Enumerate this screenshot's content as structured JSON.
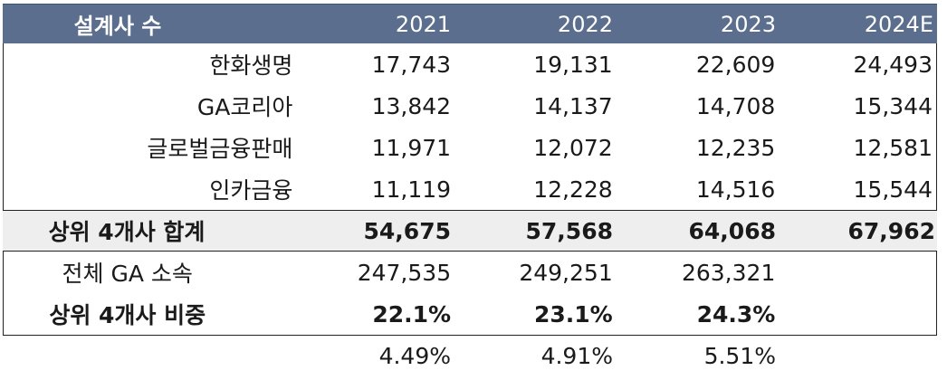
{
  "table": {
    "header": [
      "설계사 수",
      "2021",
      "2022",
      "2023",
      "2024E"
    ],
    "rows": [
      {
        "label": "한화생명",
        "values": [
          "17,743",
          "19,131",
          "22,609",
          "24,493"
        ]
      },
      {
        "label": "GA코리아",
        "values": [
          "13,842",
          "14,137",
          "14,708",
          "15,344"
        ]
      },
      {
        "label": "글로벌금융판매",
        "values": [
          "11,971",
          "12,072",
          "12,235",
          "12,581"
        ]
      },
      {
        "label": "인카금융",
        "values": [
          "11,119",
          "12,228",
          "14,516",
          "15,544"
        ]
      }
    ],
    "total": {
      "label": "상위 4개사 합계",
      "values": [
        "54,675",
        "57,568",
        "64,068",
        "67,962"
      ]
    },
    "all_ga": {
      "label": "전체 GA 소속",
      "values": [
        "247,535",
        "249,251",
        "263,321",
        ""
      ]
    },
    "share": {
      "label": "상위 4개사 비중",
      "values": [
        "22.1%",
        "23.1%",
        "24.3%",
        ""
      ]
    },
    "extra": {
      "label": "",
      "values": [
        "4.49%",
        "4.91%",
        "5.51%",
        ""
      ]
    }
  }
}
